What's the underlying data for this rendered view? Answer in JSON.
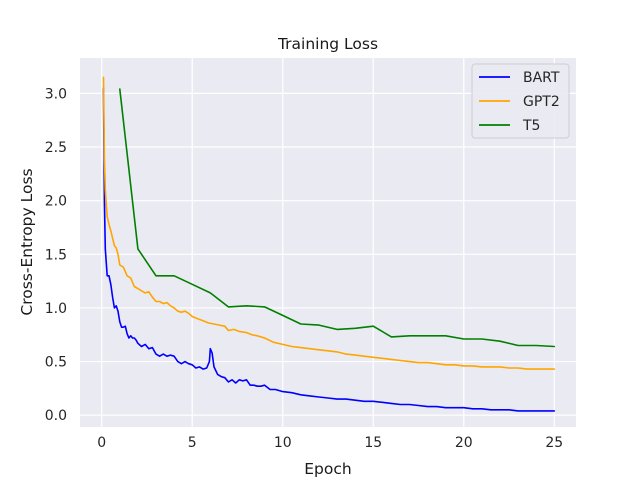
{
  "chart_data": {
    "type": "line",
    "title": "Training Loss",
    "xlabel": "Epoch",
    "ylabel": "Cross-Entropy Loss",
    "xlim": [
      -1.2,
      26.2
    ],
    "ylim": [
      -0.11,
      3.33
    ],
    "xticks": [
      0,
      5,
      10,
      15,
      20,
      25
    ],
    "yticks": [
      0.0,
      0.5,
      1.0,
      1.5,
      2.0,
      2.5,
      3.0
    ],
    "xtick_labels": [
      "0",
      "5",
      "10",
      "15",
      "20",
      "25"
    ],
    "ytick_labels": [
      "0.0",
      "0.5",
      "1.0",
      "1.5",
      "2.0",
      "2.5",
      "3.0"
    ],
    "grid": true,
    "background_color": "#eaeaf2",
    "legend_position": "top-right",
    "series": [
      {
        "name": "BART",
        "color": "#0000ff",
        "x": [
          0.1,
          0.15,
          0.2,
          0.3,
          0.4,
          0.5,
          0.6,
          0.7,
          0.8,
          0.9,
          1.0,
          1.1,
          1.2,
          1.3,
          1.4,
          1.5,
          1.6,
          1.7,
          1.8,
          1.9,
          2.0,
          2.2,
          2.4,
          2.6,
          2.8,
          3.0,
          3.2,
          3.4,
          3.6,
          3.8,
          4.0,
          4.2,
          4.4,
          4.6,
          4.8,
          5.0,
          5.2,
          5.4,
          5.6,
          5.8,
          5.95,
          6.0,
          6.1,
          6.2,
          6.4,
          6.6,
          6.8,
          7.0,
          7.2,
          7.4,
          7.6,
          7.8,
          8.0,
          8.2,
          8.4,
          8.6,
          8.8,
          9.0,
          9.3,
          9.6,
          10.0,
          10.5,
          11.0,
          11.5,
          12.0,
          12.5,
          13.0,
          13.5,
          14.0,
          14.5,
          15.0,
          15.5,
          16.0,
          16.5,
          17.0,
          17.5,
          18.0,
          18.5,
          19.0,
          19.5,
          20.0,
          20.5,
          21.0,
          21.5,
          22.0,
          22.5,
          23.0,
          23.5,
          24.0,
          24.5,
          25.0
        ],
        "values": [
          3.05,
          2.0,
          1.55,
          1.3,
          1.3,
          1.22,
          1.1,
          1.0,
          1.02,
          0.97,
          0.87,
          0.82,
          0.82,
          0.83,
          0.76,
          0.72,
          0.74,
          0.72,
          0.72,
          0.7,
          0.67,
          0.64,
          0.66,
          0.62,
          0.63,
          0.57,
          0.55,
          0.57,
          0.55,
          0.56,
          0.55,
          0.5,
          0.48,
          0.5,
          0.48,
          0.47,
          0.44,
          0.45,
          0.43,
          0.44,
          0.5,
          0.62,
          0.58,
          0.45,
          0.38,
          0.36,
          0.35,
          0.31,
          0.33,
          0.3,
          0.33,
          0.32,
          0.33,
          0.28,
          0.28,
          0.27,
          0.27,
          0.28,
          0.24,
          0.24,
          0.22,
          0.21,
          0.19,
          0.18,
          0.17,
          0.16,
          0.15,
          0.15,
          0.14,
          0.13,
          0.13,
          0.12,
          0.11,
          0.1,
          0.1,
          0.09,
          0.08,
          0.08,
          0.07,
          0.07,
          0.07,
          0.06,
          0.06,
          0.05,
          0.05,
          0.05,
          0.04,
          0.04,
          0.04,
          0.04,
          0.04
        ]
      },
      {
        "name": "GPT2",
        "color": "#ffa500",
        "x": [
          0.1,
          0.15,
          0.2,
          0.3,
          0.4,
          0.5,
          0.6,
          0.7,
          0.8,
          0.9,
          1.0,
          1.2,
          1.4,
          1.6,
          1.8,
          2.0,
          2.2,
          2.4,
          2.6,
          2.8,
          3.0,
          3.2,
          3.4,
          3.6,
          3.8,
          4.0,
          4.2,
          4.4,
          4.6,
          4.8,
          5.0,
          5.3,
          5.6,
          5.9,
          6.2,
          6.5,
          6.8,
          7.0,
          7.3,
          7.6,
          8.0,
          8.3,
          8.6,
          9.0,
          9.5,
          10.0,
          10.5,
          11.0,
          11.5,
          12.0,
          12.5,
          13.0,
          13.5,
          14.0,
          14.5,
          15.0,
          15.5,
          16.0,
          16.5,
          17.0,
          17.5,
          18.0,
          18.5,
          19.0,
          19.5,
          20.0,
          20.5,
          21.0,
          21.5,
          22.0,
          22.5,
          23.0,
          23.5,
          24.0,
          24.5,
          25.0
        ],
        "values": [
          3.15,
          2.4,
          2.1,
          1.85,
          1.78,
          1.72,
          1.65,
          1.58,
          1.56,
          1.5,
          1.4,
          1.38,
          1.3,
          1.28,
          1.2,
          1.18,
          1.16,
          1.14,
          1.15,
          1.1,
          1.06,
          1.06,
          1.04,
          1.05,
          1.02,
          1.0,
          0.97,
          0.96,
          0.97,
          0.95,
          0.92,
          0.9,
          0.88,
          0.86,
          0.85,
          0.84,
          0.83,
          0.79,
          0.8,
          0.78,
          0.77,
          0.75,
          0.74,
          0.72,
          0.68,
          0.66,
          0.64,
          0.63,
          0.62,
          0.61,
          0.6,
          0.59,
          0.57,
          0.56,
          0.55,
          0.54,
          0.53,
          0.52,
          0.51,
          0.5,
          0.49,
          0.49,
          0.48,
          0.47,
          0.47,
          0.46,
          0.46,
          0.45,
          0.45,
          0.45,
          0.44,
          0.44,
          0.43,
          0.43,
          0.43,
          0.43
        ]
      },
      {
        "name": "T5",
        "color": "#008000",
        "x": [
          1,
          2,
          3,
          4,
          5,
          6,
          7,
          8,
          9,
          10,
          11,
          12,
          13,
          14,
          15,
          16,
          17,
          18,
          19,
          20,
          21,
          22,
          23,
          24,
          25
        ],
        "values": [
          3.04,
          1.55,
          1.3,
          1.3,
          1.22,
          1.14,
          1.01,
          1.02,
          1.01,
          0.93,
          0.85,
          0.84,
          0.8,
          0.81,
          0.83,
          0.73,
          0.74,
          0.74,
          0.74,
          0.71,
          0.71,
          0.69,
          0.65,
          0.65,
          0.64
        ]
      }
    ]
  }
}
